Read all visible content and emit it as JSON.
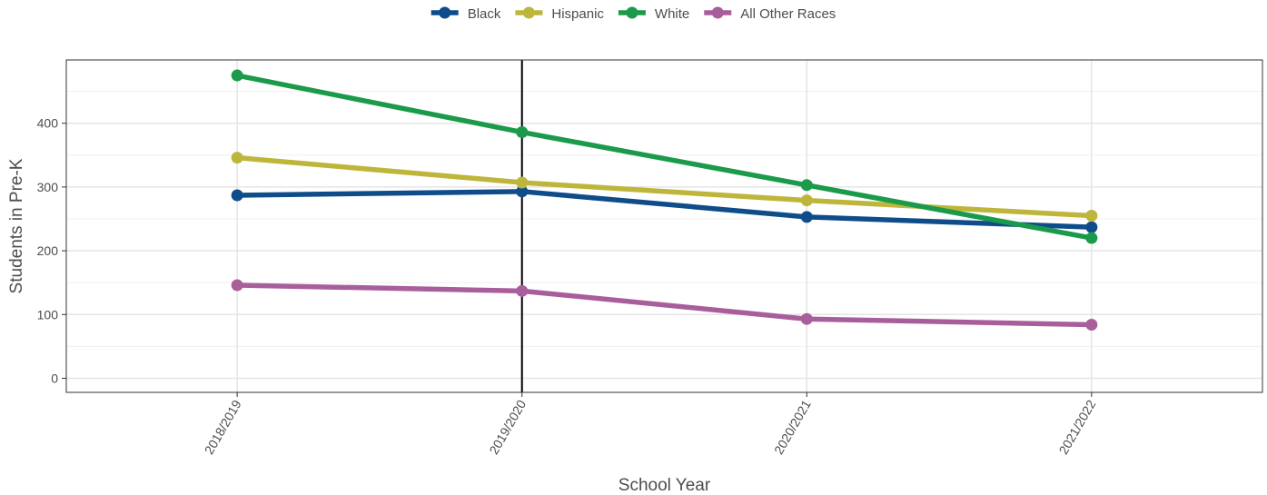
{
  "chart_data": {
    "type": "line",
    "title": "",
    "xlabel": "School Year",
    "ylabel": "Students in Pre-K",
    "categories": [
      "2018/2019",
      "2019/2020",
      "2020/2021",
      "2021/2022"
    ],
    "ylim": [
      0,
      495
    ],
    "yticks": [
      0,
      100,
      200,
      300,
      400
    ],
    "grid": true,
    "legend_position": "top",
    "vertical_reference_line": "2019/2020",
    "series": [
      {
        "name": "Black",
        "color": "#0f4c8a",
        "values": [
          287,
          293,
          253,
          237
        ]
      },
      {
        "name": "Hispanic",
        "color": "#bdb63a",
        "values": [
          346,
          307,
          279,
          255
        ]
      },
      {
        "name": "White",
        "color": "#1a9a4a",
        "values": [
          475,
          386,
          303,
          220
        ]
      },
      {
        "name": "All Other Races",
        "color": "#a95e9c",
        "values": [
          146,
          137,
          93,
          84
        ]
      }
    ]
  }
}
